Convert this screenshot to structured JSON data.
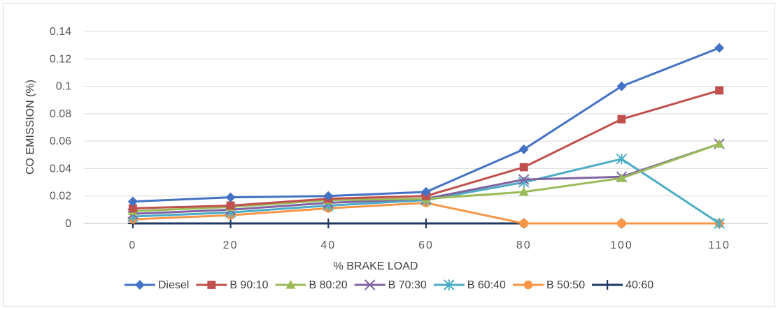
{
  "chart_data": {
    "type": "line",
    "title": "",
    "xlabel": "% BRAKE LOAD",
    "ylabel": "CO EMISSION (%)",
    "categories": [
      "0",
      "20",
      "40",
      "60",
      "80",
      "100",
      "110"
    ],
    "ylim": [
      0,
      0.14
    ],
    "yticks": [
      0,
      0.02,
      0.04,
      0.06,
      0.08,
      0.1,
      0.12,
      0.14
    ],
    "ytick_labels": [
      "0",
      "0.02",
      "0.04",
      "0.06",
      "0.08",
      "0.1",
      "0.12",
      "0.14"
    ],
    "grid": "horizontal",
    "legend_position": "bottom",
    "series": [
      {
        "name": "Diesel",
        "color": "#4472c4",
        "marker": "diamond",
        "values": [
          0.016,
          0.019,
          0.02,
          0.023,
          0.054,
          0.1,
          0.128
        ]
      },
      {
        "name": "B 90:10",
        "color": "#c0504d",
        "marker": "square",
        "values": [
          0.011,
          0.013,
          0.018,
          0.02,
          0.041,
          0.076,
          0.097
        ]
      },
      {
        "name": "B 80:20",
        "color": "#9bbb59",
        "marker": "triangle",
        "values": [
          0.009,
          0.012,
          0.017,
          0.018,
          0.023,
          0.033,
          0.058
        ]
      },
      {
        "name": "B 70:30",
        "color": "#8064a2",
        "marker": "x",
        "values": [
          0.007,
          0.01,
          0.015,
          0.018,
          0.032,
          0.034,
          0.058
        ]
      },
      {
        "name": "B 60:40",
        "color": "#4bacc6",
        "marker": "star",
        "values": [
          0.005,
          0.008,
          0.013,
          0.017,
          0.03,
          0.047,
          0.0
        ]
      },
      {
        "name": "B 50:50",
        "color": "#f79646",
        "marker": "circle",
        "values": [
          0.003,
          0.006,
          0.011,
          0.015,
          0.0,
          0.0,
          0.0
        ]
      },
      {
        "name": "40:60",
        "color": "#1f3864",
        "marker": "plus",
        "values": [
          0.0,
          0.0,
          0.0,
          0.0,
          0.0,
          0.0,
          0.0
        ]
      }
    ]
  }
}
